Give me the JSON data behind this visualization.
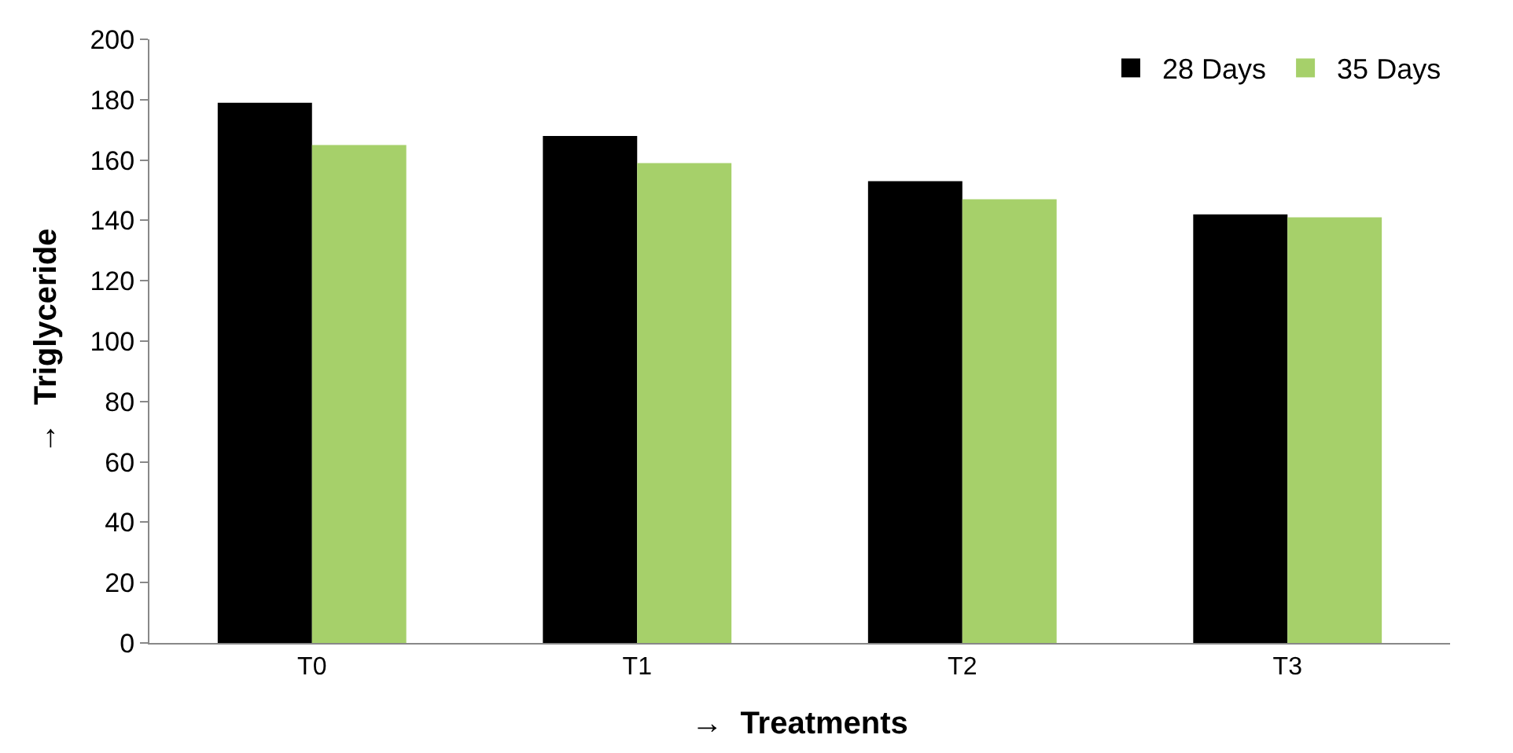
{
  "chart_data": {
    "type": "bar",
    "xlabel": "→  Treatments",
    "ylabel": "→  Triglyceride",
    "categories": [
      "T0",
      "T1",
      "T2",
      "T3"
    ],
    "series": [
      {
        "name": "28 Days",
        "color": "#000000",
        "values": [
          179,
          168,
          153,
          142
        ]
      },
      {
        "name": "35 Days",
        "color": "#a6d06a",
        "values": [
          165,
          159,
          147,
          141
        ]
      }
    ],
    "ylim": [
      0,
      200
    ],
    "yticks": [
      0,
      20,
      40,
      60,
      80,
      100,
      120,
      140,
      160,
      180,
      200
    ],
    "legend": "top right"
  }
}
